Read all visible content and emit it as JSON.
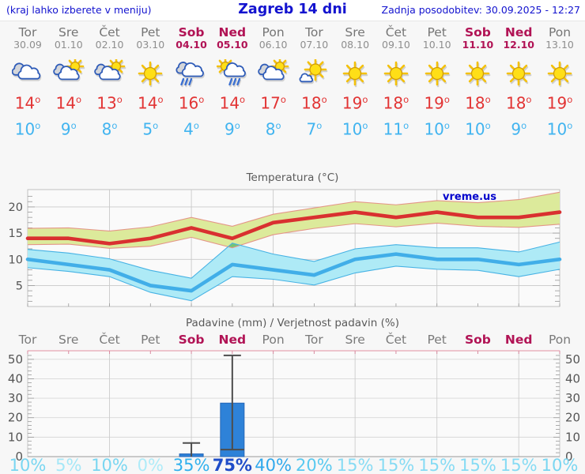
{
  "header": {
    "left_note": "(kraj lahko izberete v meniju)",
    "title": "Zagreb 14 dni",
    "last_update": "Zadnja posodobitev: 30.09.2025 - 12:27"
  },
  "strip": {
    "degree": "o"
  },
  "days": [
    {
      "name": "Tor",
      "date": "30.09",
      "weekend": false,
      "icon": "cloudy",
      "high": "14",
      "low": "10"
    },
    {
      "name": "Sre",
      "date": "01.10",
      "weekend": false,
      "icon": "partly-cloudy",
      "high": "14",
      "low": "9"
    },
    {
      "name": "Čet",
      "date": "02.10",
      "weekend": false,
      "icon": "partly-cloudy",
      "high": "13",
      "low": "8"
    },
    {
      "name": "Pet",
      "date": "03.10",
      "weekend": false,
      "icon": "sunny",
      "high": "14",
      "low": "5"
    },
    {
      "name": "Sob",
      "date": "04.10",
      "weekend": true,
      "icon": "rain",
      "high": "16",
      "low": "4"
    },
    {
      "name": "Ned",
      "date": "05.10",
      "weekend": true,
      "icon": "sun-rain",
      "high": "14",
      "low": "9"
    },
    {
      "name": "Pon",
      "date": "06.10",
      "weekend": false,
      "icon": "partly-cloudy",
      "high": "17",
      "low": "8"
    },
    {
      "name": "Tor",
      "date": "07.10",
      "weekend": false,
      "icon": "mostly-sunny",
      "high": "18",
      "low": "7"
    },
    {
      "name": "Sre",
      "date": "08.10",
      "weekend": false,
      "icon": "sunny",
      "high": "19",
      "low": "10"
    },
    {
      "name": "Čet",
      "date": "09.10",
      "weekend": false,
      "icon": "sunny",
      "high": "18",
      "low": "11"
    },
    {
      "name": "Pet",
      "date": "10.10",
      "weekend": false,
      "icon": "sunny",
      "high": "19",
      "low": "10"
    },
    {
      "name": "Sob",
      "date": "11.10",
      "weekend": true,
      "icon": "sunny",
      "high": "18",
      "low": "10"
    },
    {
      "name": "Ned",
      "date": "12.10",
      "weekend": true,
      "icon": "sunny",
      "high": "18",
      "low": "9"
    },
    {
      "name": "Pon",
      "date": "13.10",
      "weekend": false,
      "icon": "sunny",
      "high": "19",
      "low": "10"
    }
  ],
  "watermark": "vreme.us",
  "colors": {
    "link": "#1313cf",
    "weekend": "#b11355",
    "day_gray": "#757575",
    "high_red": "#e23434",
    "low_blue": "#41b4f0",
    "chart_title_gray": "#5a5a5a",
    "bar_blue": "#2e82d8"
  },
  "chart_data": [
    {
      "type": "line",
      "title": "Temperatura (°C)",
      "categories": [
        "Tor",
        "Sre",
        "Čet",
        "Pet",
        "Sob",
        "Ned",
        "Pon",
        "Tor",
        "Sre",
        "Čet",
        "Pet",
        "Sob",
        "Ned",
        "Pon"
      ],
      "weekend_indices": [
        4,
        5,
        11,
        12
      ],
      "ylim": [
        1,
        23.3
      ],
      "yticks": [
        5,
        10,
        15,
        20
      ],
      "grid": true,
      "legend": "none",
      "series": [
        {
          "name": "max-temp",
          "color": "#d93030",
          "values": [
            14,
            14,
            13,
            14,
            16,
            14,
            17,
            18,
            19,
            18,
            19,
            18,
            18,
            19
          ]
        },
        {
          "name": "min-temp",
          "color": "#41aee8",
          "values": [
            10,
            9,
            8,
            5,
            4,
            9,
            8,
            7,
            10,
            11,
            10,
            10,
            9,
            10
          ]
        }
      ],
      "bands": [
        {
          "name": "max-range",
          "fill": "#dcea9b",
          "edge": "#e49688",
          "top": [
            15.9,
            16.0,
            15.4,
            16.2,
            18.0,
            16.3,
            18.6,
            19.8,
            21.0,
            20.4,
            21.2,
            20.8,
            21.4,
            22.8
          ],
          "bottom": [
            12.8,
            12.9,
            12.1,
            12.5,
            14.2,
            12.2,
            14.7,
            15.9,
            16.8,
            16.2,
            16.9,
            16.3,
            16.1,
            16.7
          ]
        },
        {
          "name": "min-range",
          "fill": "#aeeaf6",
          "edge": "#46b2e4",
          "top": [
            11.9,
            11.2,
            10.1,
            7.9,
            6.4,
            13.1,
            11.0,
            9.6,
            12.0,
            12.8,
            12.2,
            12.2,
            11.4,
            13.3
          ],
          "bottom": [
            8.4,
            7.7,
            6.7,
            3.7,
            2.1,
            6.7,
            6.2,
            5.1,
            7.4,
            8.7,
            8.1,
            7.9,
            6.7,
            8.1
          ]
        }
      ],
      "overlap_fill": "#74c474"
    },
    {
      "type": "bar",
      "title": "Padavine (mm) / Verjetnost padavin (%)",
      "categories": [
        "Tor",
        "Sre",
        "Čet",
        "Pet",
        "Sob",
        "Ned",
        "Pon",
        "Tor",
        "Sre",
        "Čet",
        "Pet",
        "Sob",
        "Ned",
        "Pon"
      ],
      "weekend_indices": [
        4,
        5,
        11,
        12
      ],
      "ylim": [
        0,
        54.4
      ],
      "yticks": [
        0,
        10,
        20,
        30,
        40,
        50
      ],
      "grid": true,
      "legend": "none",
      "values": [
        0,
        0,
        0,
        0,
        1.4,
        27.5,
        0,
        0,
        0,
        0,
        0,
        0,
        0,
        0
      ],
      "whiskers": [
        null,
        null,
        null,
        null,
        [
          0,
          7
        ],
        [
          3.6,
          52
        ],
        null,
        null,
        null,
        null,
        null,
        null,
        null,
        null
      ],
      "probabilities": [
        "10%",
        "5%",
        "10%",
        "0%",
        "35%",
        "75%",
        "40%",
        "20%",
        "15%",
        "15%",
        "15%",
        "15%",
        "15%",
        "10%"
      ],
      "prob_colors": [
        "#79d6f1",
        "#a5e7f7",
        "#79d6f1",
        "#aeebf8",
        "#2fb0ee",
        "#1f4dc8",
        "#2fa8ec",
        "#58c9f0",
        "#86dbf4",
        "#86dbf4",
        "#86dbf4",
        "#86dbf4",
        "#86dbf4",
        "#79d6f1"
      ]
    }
  ]
}
